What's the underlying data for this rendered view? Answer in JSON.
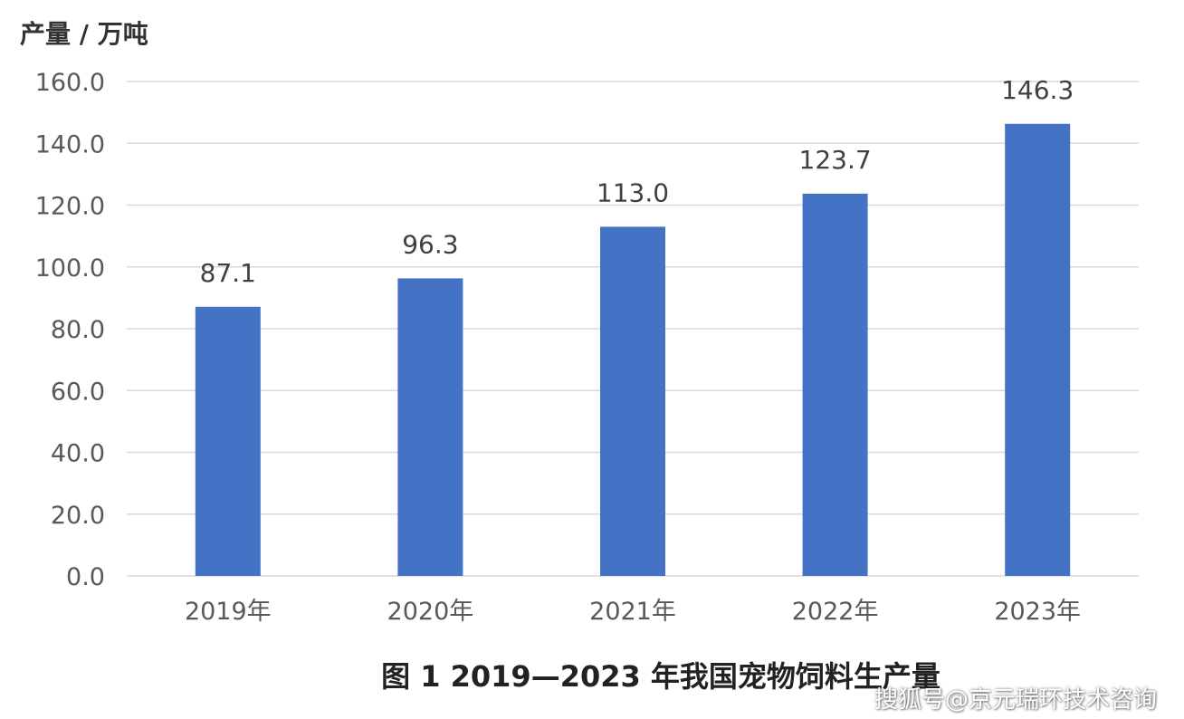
{
  "chart_data": {
    "type": "bar",
    "title": "图 1  2019—2023 年我国宠物饲料生产量",
    "ylabel": "产量 / 万吨",
    "xlabel": "",
    "categories": [
      "2019年",
      "2020年",
      "2021年",
      "2022年",
      "2023年"
    ],
    "values": [
      87.1,
      96.3,
      113.0,
      123.7,
      146.3
    ],
    "value_labels": [
      "87.1",
      "96.3",
      "113.0",
      "123.7",
      "146.3"
    ],
    "ylim": [
      0,
      160
    ],
    "yticks": [
      "0.0",
      "20.0",
      "40.0",
      "60.0",
      "80.0",
      "100.0",
      "120.0",
      "140.0",
      "160.0"
    ],
    "grid": true,
    "legend": "none",
    "colors": {
      "bar": "#4472c4",
      "grid": "#d9d9d9",
      "axis_text": "#595959",
      "label_text": "#404040"
    }
  },
  "watermark": "搜狐号@京元瑞环技术咨询"
}
